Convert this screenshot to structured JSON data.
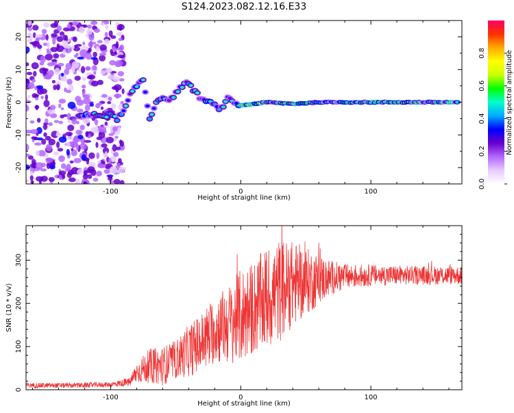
{
  "title": "S124.2023.082.12.16.E33",
  "chart_data": [
    {
      "type": "heatmap",
      "xlabel": "Height of straight line (km)",
      "ylabel": "Frequency (Hz)",
      "xlim": [
        -165,
        170
      ],
      "ylim": [
        -25,
        25
      ],
      "xticks": [
        -100,
        0,
        100
      ],
      "yticks": [
        -20,
        -10,
        0,
        10,
        20
      ],
      "colorbar": {
        "label": "Normalized spectral amplitude",
        "range": [
          0,
          1
        ],
        "ticks": [
          "0.0",
          "0.2",
          "0.4",
          "0.6",
          "0.8"
        ],
        "colors": [
          "#ffffff",
          "#e6ccff",
          "#b366ff",
          "#6600cc",
          "#0000ff",
          "#00aaff",
          "#00ffcc",
          "#00ff00",
          "#ccff00",
          "#ffff00",
          "#ffaa00",
          "#ff3300",
          "#ff0066"
        ]
      },
      "features": {
        "noise_region_x": [
          -165,
          -90
        ],
        "signal_ridge": [
          {
            "x": -125,
            "y": -4
          },
          {
            "x": -100,
            "y": -4
          },
          {
            "x": -95,
            "y": -5
          },
          {
            "x": -90,
            "y": -3
          },
          {
            "x": -85,
            "y": 2
          },
          {
            "x": -80,
            "y": 5
          },
          {
            "x": -75,
            "y": 7
          },
          {
            "x": -70,
            "y": -5
          },
          {
            "x": -65,
            "y": 0
          },
          {
            "x": -60,
            "y": 2
          },
          {
            "x": -55,
            "y": 0
          },
          {
            "x": -50,
            "y": 3
          },
          {
            "x": -45,
            "y": 5
          },
          {
            "x": -40,
            "y": 6
          },
          {
            "x": -35,
            "y": 3
          },
          {
            "x": -30,
            "y": 1
          },
          {
            "x": -20,
            "y": -1
          },
          {
            "x": -15,
            "y": -2
          },
          {
            "x": -10,
            "y": 1
          },
          {
            "x": -5,
            "y": 0
          },
          {
            "x": 0,
            "y": -1
          },
          {
            "x": 20,
            "y": 0
          },
          {
            "x": 40,
            "y": -0.5
          },
          {
            "x": 60,
            "y": 0
          },
          {
            "x": 80,
            "y": 0
          },
          {
            "x": 100,
            "y": 0
          },
          {
            "x": 120,
            "y": 0
          },
          {
            "x": 140,
            "y": 0
          },
          {
            "x": 160,
            "y": 0
          },
          {
            "x": 168,
            "y": 0
          }
        ]
      }
    },
    {
      "type": "line",
      "xlabel": "Height of straight line (km)",
      "ylabel": "SNR (10 * v/v)",
      "xlim": [
        -165,
        170
      ],
      "ylim": [
        0,
        380
      ],
      "xticks": [
        -100,
        0,
        100
      ],
      "yticks": [
        0,
        100,
        200,
        300
      ],
      "series": [
        {
          "color": "#ee3333",
          "envelope": [
            {
              "x": -165,
              "mean": 10,
              "amp": 6
            },
            {
              "x": -130,
              "mean": 10,
              "amp": 6
            },
            {
              "x": -100,
              "mean": 12,
              "amp": 6
            },
            {
              "x": -85,
              "mean": 18,
              "amp": 10
            },
            {
              "x": -80,
              "mean": 40,
              "amp": 25
            },
            {
              "x": -70,
              "mean": 55,
              "amp": 40
            },
            {
              "x": -60,
              "mean": 55,
              "amp": 45
            },
            {
              "x": -50,
              "mean": 70,
              "amp": 45
            },
            {
              "x": -40,
              "mean": 90,
              "amp": 60
            },
            {
              "x": -30,
              "mean": 110,
              "amp": 70
            },
            {
              "x": -20,
              "mean": 140,
              "amp": 80
            },
            {
              "x": -10,
              "mean": 150,
              "amp": 90
            },
            {
              "x": 0,
              "mean": 170,
              "amp": 110
            },
            {
              "x": 10,
              "mean": 190,
              "amp": 110
            },
            {
              "x": 20,
              "mean": 210,
              "amp": 120
            },
            {
              "x": 30,
              "mean": 230,
              "amp": 120
            },
            {
              "x": 40,
              "mean": 245,
              "amp": 100
            },
            {
              "x": 50,
              "mean": 250,
              "amp": 80
            },
            {
              "x": 60,
              "mean": 255,
              "amp": 60
            },
            {
              "x": 70,
              "mean": 260,
              "amp": 40
            },
            {
              "x": 80,
              "mean": 262,
              "amp": 30
            },
            {
              "x": 100,
              "mean": 265,
              "amp": 25
            },
            {
              "x": 130,
              "mean": 265,
              "amp": 22
            },
            {
              "x": 150,
              "mean": 265,
              "amp": 22
            },
            {
              "x": 170,
              "mean": 265,
              "amp": 22
            }
          ]
        }
      ]
    }
  ]
}
